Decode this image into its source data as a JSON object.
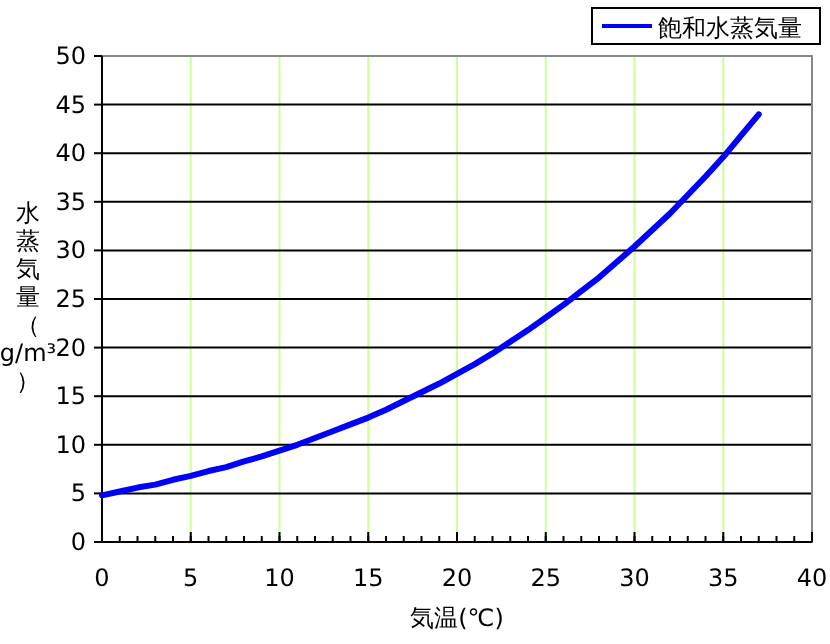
{
  "chart_data": {
    "type": "line",
    "xlabel": "気温(℃)",
    "ylabel": "水蒸気量（g/m³）",
    "x": [
      0,
      1,
      2,
      3,
      4,
      5,
      6,
      7,
      8,
      9,
      10,
      11,
      12,
      13,
      14,
      15,
      16,
      17,
      18,
      19,
      20,
      21,
      22,
      23,
      24,
      25,
      26,
      27,
      28,
      29,
      30,
      31,
      32,
      33,
      34,
      35,
      36,
      37
    ],
    "series": [
      {
        "name": "飽和水蒸気量",
        "color": "#0000ff",
        "values": [
          4.8,
          5.2,
          5.6,
          5.9,
          6.4,
          6.8,
          7.3,
          7.7,
          8.3,
          8.8,
          9.4,
          10.0,
          10.7,
          11.4,
          12.1,
          12.8,
          13.6,
          14.5,
          15.4,
          16.3,
          17.3,
          18.3,
          19.4,
          20.6,
          21.8,
          23.1,
          24.4,
          25.8,
          27.2,
          28.8,
          30.4,
          32.1,
          33.8,
          35.7,
          37.6,
          39.6,
          41.8,
          44.0
        ]
      }
    ],
    "xlim": [
      0,
      40
    ],
    "xticks": [
      0,
      5,
      10,
      15,
      20,
      25,
      30,
      35,
      40
    ],
    "ylim": [
      0,
      50
    ],
    "yticks": [
      0,
      5,
      10,
      15,
      20,
      25,
      30,
      35,
      40,
      45,
      50
    ],
    "grid": true,
    "legend": "top right",
    "marker": "none",
    "line_style": "solid"
  }
}
